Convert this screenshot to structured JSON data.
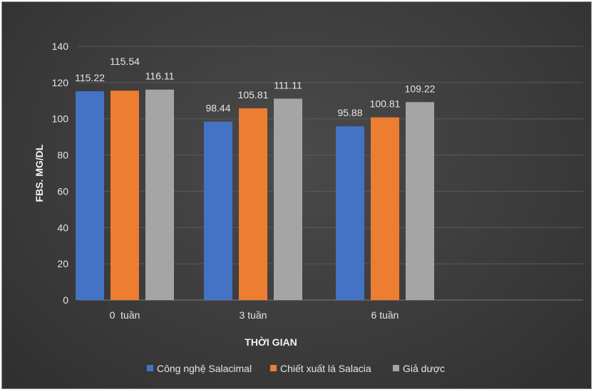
{
  "chart_data": {
    "type": "bar",
    "categories": [
      "0  tuần",
      "3 tuần",
      "6 tuần"
    ],
    "series": [
      {
        "name": "Công nghệ Salacimal",
        "values": [
          115.22,
          98.44,
          95.88
        ],
        "color": "#4472c4"
      },
      {
        "name": "Chiết xuất lá Salacia",
        "values": [
          115.54,
          105.81,
          100.81
        ],
        "color": "#ed7d31"
      },
      {
        "name": "Giả dược",
        "values": [
          116.11,
          111.11,
          109.22
        ],
        "color": "#a5a5a5"
      }
    ],
    "data_labels": [
      [
        "115.22",
        "98.44",
        "95.88"
      ],
      [
        "115.54",
        "105.81",
        "100.81"
      ],
      [
        "116.11",
        "111.11",
        "109.22"
      ]
    ],
    "xlabel": "THỜI GIAN",
    "ylabel": "FBS. MG/DL",
    "ylim": [
      0,
      140
    ],
    "yticks": [
      0,
      20,
      40,
      60,
      80,
      100,
      120,
      140
    ],
    "ytick_labels": [
      "0",
      "20",
      "40",
      "60",
      "80",
      "100",
      "120",
      "140"
    ],
    "grid": true,
    "legend_position": "bottom",
    "background": "#3f3f3f"
  }
}
